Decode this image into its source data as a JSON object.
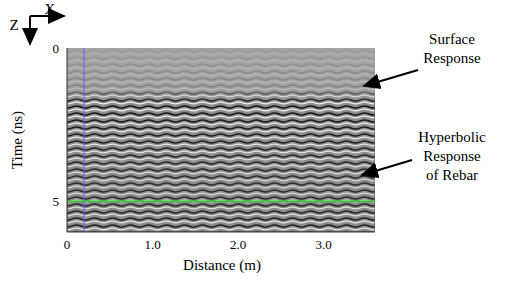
{
  "chart_data": {
    "type": "radargram",
    "x_label": "Distance (m)",
    "y_label": "Time (ns)",
    "xlim": [
      0,
      3.6
    ],
    "xticks": [
      0,
      {
        "value": 1,
        "label": "1.0"
      },
      {
        "value": 2,
        "label": "2.0"
      },
      {
        "value": 3,
        "label": "3.0"
      }
    ],
    "ylim": [
      0,
      6
    ],
    "yticks": [
      0,
      5
    ],
    "grid": false,
    "horizontal_marker": 5,
    "vertical_marker": 0.2,
    "axes_icon": {
      "x": "X",
      "z": "Z"
    },
    "annotations": [
      {
        "lines": [
          "Surface",
          "Response"
        ]
      },
      {
        "lines": [
          "Hyperbolic",
          "Response",
          "of Rebar"
        ]
      }
    ]
  }
}
